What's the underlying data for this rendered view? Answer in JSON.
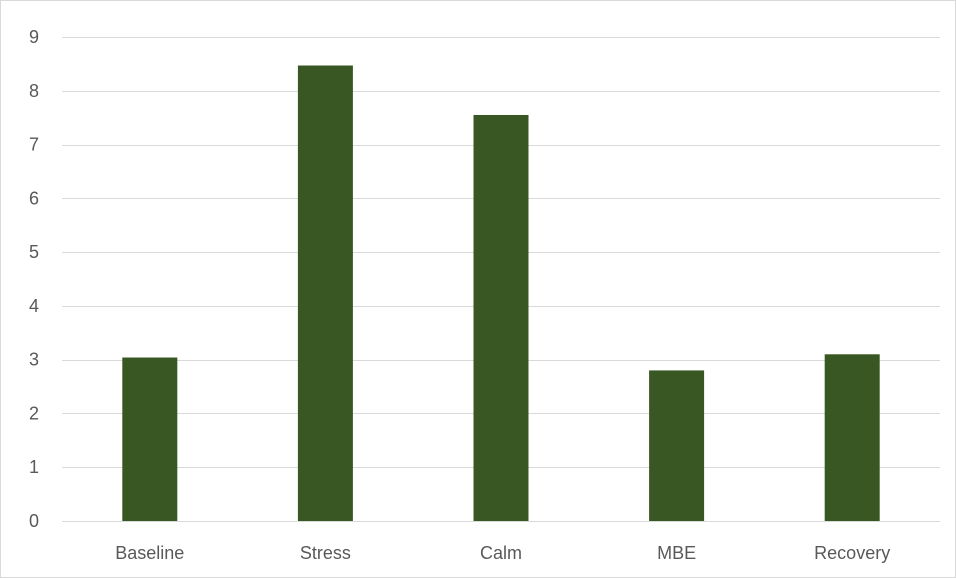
{
  "colors": {
    "bar": "#385723",
    "gridline": "#d9d9d9",
    "tick_text": "#595959",
    "background": "#ffffff"
  },
  "chart_data": {
    "type": "bar",
    "categories": [
      "Baseline",
      "Stress",
      "Calm",
      "MBE",
      "Recovery"
    ],
    "values": [
      3.04,
      8.47,
      7.55,
      2.8,
      3.1
    ],
    "y_ticks": [
      "0",
      "1",
      "2",
      "3",
      "4",
      "5",
      "6",
      "7",
      "8",
      "9"
    ],
    "ylim": [
      0,
      9
    ],
    "grid": true,
    "legend": "none",
    "title": "",
    "xlabel": "",
    "ylabel": ""
  }
}
